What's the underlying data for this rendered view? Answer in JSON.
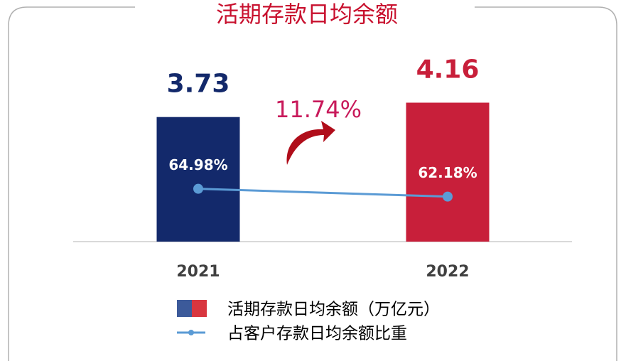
{
  "chart_data": {
    "type": "bar-line",
    "title": "活期存款日均余额",
    "categories": [
      "2021",
      "2022"
    ],
    "series": [
      {
        "name": "活期存款日均余额（万亿元）",
        "type": "bar",
        "colors": [
          "#13296b",
          "#c81f3a"
        ],
        "values": [
          3.73,
          4.16
        ]
      },
      {
        "name": "占客户存款日均余额比重",
        "type": "line",
        "axis": "y2",
        "color": "#5b9bd5",
        "values": [
          64.98,
          62.18
        ],
        "value_labels": [
          "64.98%",
          "62.18%"
        ]
      }
    ],
    "annotation": "11.74%",
    "ylim": [
      0,
      5
    ],
    "y2lim": [
      46,
      106
    ]
  }
}
